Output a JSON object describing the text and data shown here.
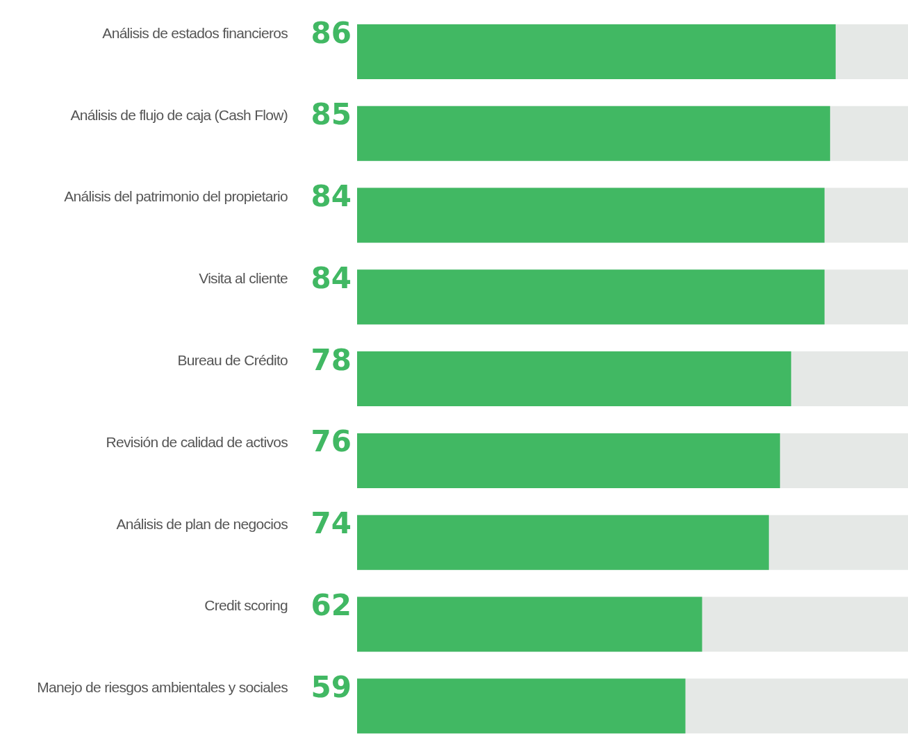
{
  "chart_data": {
    "type": "bar",
    "orientation": "horizontal",
    "categories": [
      "Análisis de estados financieros",
      "Análisis de flujo de caja (Cash Flow)",
      "Análisis del patrimonio del propietario",
      "Visita al cliente",
      "Bureau de Crédito",
      "Revisión de calidad de activos",
      "Análisis de plan de negocios",
      "Credit scoring",
      "Manejo de riesgos ambientales y sociales"
    ],
    "values": [
      86,
      85,
      84,
      84,
      78,
      76,
      74,
      62,
      59
    ],
    "color": "#41b863",
    "xlim": [
      0,
      100
    ],
    "tick_labels": "y",
    "data_labels": true
  }
}
